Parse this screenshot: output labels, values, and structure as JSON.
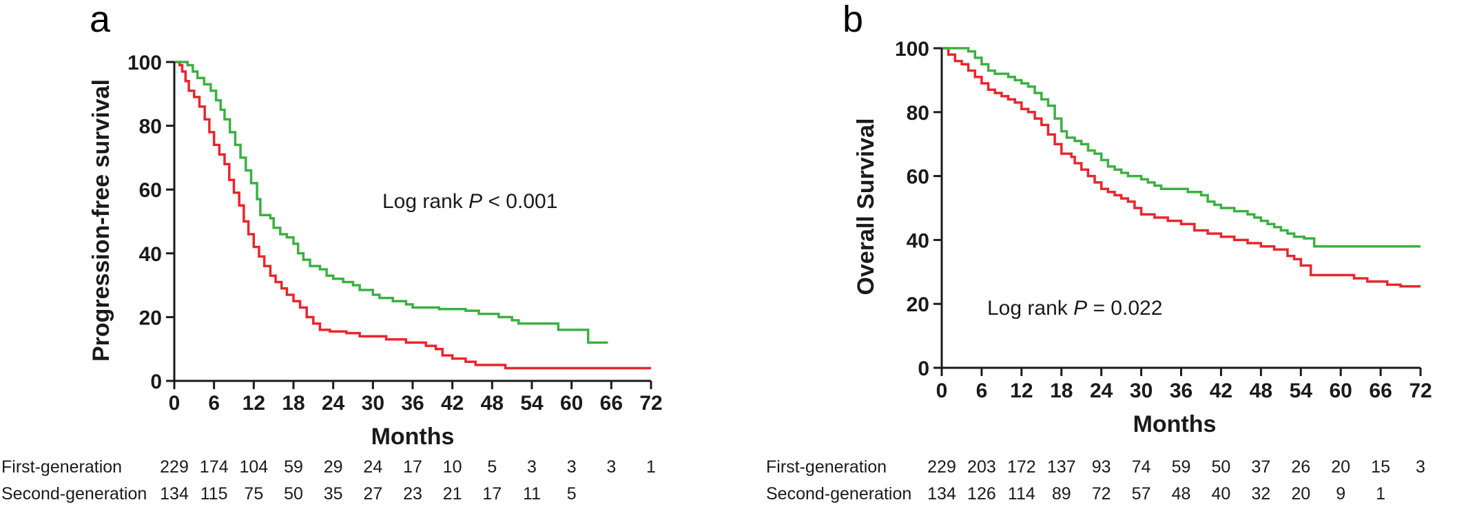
{
  "colors": {
    "first_generation": "#e8262b",
    "second_generation": "#3cb043",
    "axis": "#1a1a1a"
  },
  "chart_data": [
    {
      "panel": "a",
      "type": "line",
      "step": true,
      "xlabel": "Months",
      "ylabel": "Progression-free survival",
      "xlim": [
        0,
        72
      ],
      "ylim": [
        0,
        100
      ],
      "xticks": [
        0,
        6,
        12,
        18,
        24,
        30,
        36,
        42,
        48,
        54,
        60,
        66,
        72
      ],
      "yticks": [
        0,
        20,
        40,
        60,
        80,
        100
      ],
      "grid": false,
      "annotation": {
        "prefix": "Log rank ",
        "italic": "P",
        "suffix": " < 0.001"
      },
      "series": [
        {
          "key": "first_generation",
          "color": "#e8262b",
          "points": [
            [
              0,
              100
            ],
            [
              0.8,
              99
            ],
            [
              1.2,
              97
            ],
            [
              1.7,
              94
            ],
            [
              2.2,
              91
            ],
            [
              3,
              89
            ],
            [
              3.8,
              86
            ],
            [
              4.6,
              82
            ],
            [
              5.3,
              78
            ],
            [
              6,
              74
            ],
            [
              6.8,
              71
            ],
            [
              7.6,
              68
            ],
            [
              8.3,
              63
            ],
            [
              9,
              59
            ],
            [
              9.8,
              55
            ],
            [
              10.5,
              50
            ],
            [
              11.2,
              46
            ],
            [
              12,
              42
            ],
            [
              12.8,
              39
            ],
            [
              13.6,
              36
            ],
            [
              14.5,
              33
            ],
            [
              15.3,
              31
            ],
            [
              16.2,
              29
            ],
            [
              17,
              27
            ],
            [
              18,
              25
            ],
            [
              19,
              23
            ],
            [
              20,
              20
            ],
            [
              21,
              18
            ],
            [
              22,
              16
            ],
            [
              23.5,
              15.5
            ],
            [
              26,
              15
            ],
            [
              28,
              14
            ],
            [
              32,
              13
            ],
            [
              35,
              12
            ],
            [
              38,
              11
            ],
            [
              39.5,
              10
            ],
            [
              40.5,
              8
            ],
            [
              42,
              7
            ],
            [
              44,
              6
            ],
            [
              45.5,
              5
            ],
            [
              50,
              4
            ],
            [
              72,
              4
            ]
          ]
        },
        {
          "key": "second_generation",
          "color": "#3cb043",
          "points": [
            [
              0,
              100
            ],
            [
              2,
              99
            ],
            [
              2.8,
              97
            ],
            [
              3.5,
              95
            ],
            [
              4.5,
              93
            ],
            [
              5.5,
              91
            ],
            [
              6.3,
              88
            ],
            [
              7,
              85
            ],
            [
              7.6,
              82
            ],
            [
              8.4,
              78
            ],
            [
              9.2,
              74
            ],
            [
              10,
              70
            ],
            [
              10.8,
              66
            ],
            [
              11.6,
              62
            ],
            [
              12.5,
              57
            ],
            [
              13,
              52
            ],
            [
              14.5,
              51
            ],
            [
              15,
              48
            ],
            [
              16,
              46
            ],
            [
              17,
              45
            ],
            [
              18,
              43
            ],
            [
              18.7,
              40
            ],
            [
              19.5,
              38
            ],
            [
              20.5,
              36
            ],
            [
              22,
              35
            ],
            [
              23,
              33
            ],
            [
              24,
              32
            ],
            [
              25.5,
              31
            ],
            [
              27,
              30
            ],
            [
              28,
              28.5
            ],
            [
              30,
              27
            ],
            [
              31,
              26
            ],
            [
              33,
              25
            ],
            [
              35,
              24
            ],
            [
              36,
              23
            ],
            [
              40,
              22.5
            ],
            [
              44,
              22
            ],
            [
              46,
              21
            ],
            [
              49,
              20
            ],
            [
              51,
              19
            ],
            [
              52,
              18
            ],
            [
              58,
              16
            ],
            [
              62.5,
              12
            ],
            [
              65.5,
              12
            ]
          ]
        }
      ],
      "risk_table": {
        "labels": {
          "first_generation": "First-generation",
          "second_generation": "Second-generation"
        },
        "first_generation": [
          "229",
          "174",
          "104",
          "59",
          "29",
          "24",
          "17",
          "10",
          "5",
          "3",
          "3",
          "3",
          "1"
        ],
        "second_generation": [
          "134",
          "115",
          "75",
          "50",
          "35",
          "27",
          "23",
          "21",
          "17",
          "11",
          "5"
        ]
      }
    },
    {
      "panel": "b",
      "type": "line",
      "step": true,
      "xlabel": "Months",
      "ylabel": "Overall Survival",
      "xlim": [
        0,
        72
      ],
      "ylim": [
        0,
        100
      ],
      "xticks": [
        0,
        6,
        12,
        18,
        24,
        30,
        36,
        42,
        48,
        54,
        60,
        66,
        72
      ],
      "yticks": [
        0,
        20,
        40,
        60,
        80,
        100
      ],
      "grid": false,
      "annotation": {
        "prefix": "Log rank ",
        "italic": "P",
        "suffix": " = 0.022"
      },
      "series": [
        {
          "key": "first_generation",
          "color": "#e8262b",
          "points": [
            [
              0,
              100
            ],
            [
              1,
              98
            ],
            [
              2,
              96
            ],
            [
              3,
              95
            ],
            [
              4,
              93
            ],
            [
              5,
              91
            ],
            [
              6,
              89
            ],
            [
              7,
              87
            ],
            [
              8,
              86
            ],
            [
              9,
              85
            ],
            [
              10,
              84
            ],
            [
              11,
              83
            ],
            [
              12,
              81
            ],
            [
              13,
              80
            ],
            [
              14,
              78
            ],
            [
              15,
              76
            ],
            [
              16,
              73
            ],
            [
              17,
              70
            ],
            [
              18,
              67
            ],
            [
              19.5,
              66
            ],
            [
              20,
              64
            ],
            [
              21,
              62
            ],
            [
              22,
              60
            ],
            [
              23,
              58
            ],
            [
              24,
              56
            ],
            [
              25,
              55
            ],
            [
              26,
              54
            ],
            [
              27,
              53
            ],
            [
              28,
              52
            ],
            [
              29,
              50
            ],
            [
              30,
              48
            ],
            [
              32,
              47
            ],
            [
              34,
              46
            ],
            [
              36,
              45
            ],
            [
              38,
              43
            ],
            [
              40,
              42
            ],
            [
              42,
              41
            ],
            [
              44,
              40
            ],
            [
              46,
              39
            ],
            [
              48,
              38
            ],
            [
              50,
              37
            ],
            [
              52,
              35
            ],
            [
              53,
              34
            ],
            [
              54,
              32
            ],
            [
              55.5,
              29
            ],
            [
              62,
              28
            ],
            [
              64,
              27
            ],
            [
              67,
              26
            ],
            [
              69,
              25.5
            ],
            [
              72,
              25.5
            ]
          ]
        },
        {
          "key": "second_generation",
          "color": "#3cb043",
          "points": [
            [
              0,
              100
            ],
            [
              4,
              99
            ],
            [
              5,
              97
            ],
            [
              6,
              95
            ],
            [
              7,
              93
            ],
            [
              8,
              92
            ],
            [
              10,
              91
            ],
            [
              11,
              90
            ],
            [
              12,
              89
            ],
            [
              13,
              88
            ],
            [
              14,
              86
            ],
            [
              15,
              84
            ],
            [
              16,
              82
            ],
            [
              17,
              78
            ],
            [
              18,
              74
            ],
            [
              18.8,
              72
            ],
            [
              20,
              71
            ],
            [
              21,
              70
            ],
            [
              22,
              68
            ],
            [
              23,
              67
            ],
            [
              24,
              65
            ],
            [
              25,
              63
            ],
            [
              26,
              62
            ],
            [
              27,
              61
            ],
            [
              28,
              60
            ],
            [
              30,
              59
            ],
            [
              31,
              58
            ],
            [
              32,
              57
            ],
            [
              33,
              56
            ],
            [
              37,
              55
            ],
            [
              39,
              54
            ],
            [
              40,
              52
            ],
            [
              41,
              51
            ],
            [
              42,
              50
            ],
            [
              44,
              49
            ],
            [
              46,
              48
            ],
            [
              47,
              47
            ],
            [
              48,
              46
            ],
            [
              49,
              45
            ],
            [
              50,
              44
            ],
            [
              51,
              43
            ],
            [
              52,
              42
            ],
            [
              53,
              41
            ],
            [
              54.5,
              40.5
            ],
            [
              56,
              38
            ],
            [
              72,
              38
            ]
          ]
        }
      ],
      "risk_table": {
        "labels": {
          "first_generation": "First-generation",
          "second_generation": "Second-generation"
        },
        "first_generation": [
          "229",
          "203",
          "172",
          "137",
          "93",
          "74",
          "59",
          "50",
          "37",
          "26",
          "20",
          "15",
          "3"
        ],
        "second_generation": [
          "134",
          "126",
          "114",
          "89",
          "72",
          "57",
          "48",
          "40",
          "32",
          "20",
          "9",
          "1"
        ]
      }
    }
  ]
}
